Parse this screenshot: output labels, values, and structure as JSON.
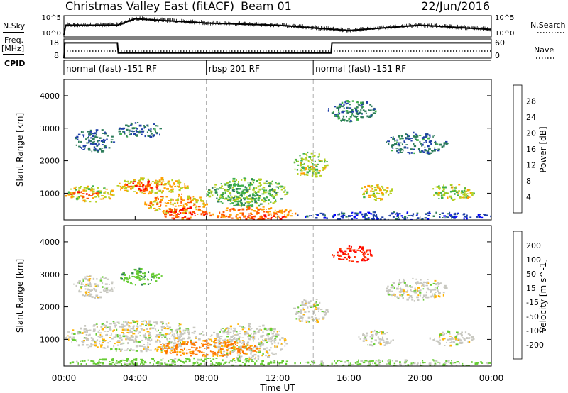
{
  "header": {
    "station": "Christmas Valley East (fitACF)",
    "beam": "Beam 01",
    "date": "22/Jun/2016"
  },
  "left_labels": {
    "nsky": "N.Sky",
    "freq_line1": "Freq.",
    "freq_line2": "[MHz]",
    "cpid": "CPID"
  },
  "right_labels": {
    "nsearch": "N.Search",
    "nave": "Nave"
  },
  "noise_axis": {
    "top": "10^5",
    "bottom": "10^0"
  },
  "freq_axis": {
    "left_ticks": [
      "18",
      "8"
    ],
    "right_ticks": [
      "60",
      "0"
    ]
  },
  "cpid_segments": [
    {
      "label": "normal (fast) -151 RF",
      "start_hour": 0,
      "end_hour": 8
    },
    {
      "label": "rbsp 201 RF",
      "start_hour": 8,
      "end_hour": 14
    },
    {
      "label": "normal (fast) -151 RF",
      "start_hour": 14,
      "end_hour": 24
    }
  ],
  "x_axis": {
    "label": "Time UT",
    "ticks": [
      "00:00",
      "04:00",
      "08:00",
      "12:00",
      "16:00",
      "20:00",
      "00:00"
    ]
  },
  "power_panel": {
    "ylabel": "Slant Range [km]",
    "yticks": [
      "1000",
      "2000",
      "3000",
      "4000"
    ],
    "colorbar_label": "Power [dB]",
    "colorbar_ticks": [
      "4",
      "8",
      "12",
      "16",
      "20",
      "24",
      "28"
    ],
    "colors": [
      "#0000ff",
      "#1e3fa8",
      "#2e7d5b",
      "#3fb04a",
      "#b5d020",
      "#ff9f00",
      "#ff5500",
      "#ff0000"
    ]
  },
  "velocity_panel": {
    "ylabel": "Slant Range [km]",
    "yticks": [
      "1000",
      "2000",
      "3000",
      "4000"
    ],
    "colorbar_label": "Velocity [m s^-1]",
    "colorbar_ticks": [
      "200",
      "100",
      "50",
      "15",
      "-15",
      "-50",
      "-100",
      "-200"
    ],
    "colors": [
      "#0000c0",
      "#1e3fa8",
      "#2e7d5b",
      "#66cc33",
      "#c8c8c0",
      "#ffb300",
      "#ff7700",
      "#ff3300",
      "#ff0000"
    ]
  },
  "chart_data": [
    {
      "type": "line",
      "name": "noise",
      "x_range": [
        0,
        24
      ],
      "ylim": [
        "10^0",
        "10^5"
      ],
      "series": [
        {
          "name": "N.Sky",
          "x": [
            0,
            0.1,
            3,
            4,
            8,
            12,
            16,
            20,
            24
          ],
          "y_frac": [
            0.1,
            0.55,
            0.55,
            0.85,
            0.65,
            0.55,
            0.3,
            0.55,
            0.35
          ]
        }
      ]
    },
    {
      "type": "line",
      "name": "frequency",
      "x_range": [
        0,
        24
      ],
      "ylim_left": [
        8,
        18
      ],
      "ylim_right": [
        0,
        60
      ],
      "series": [
        {
          "name": "Freq.",
          "x": [
            0,
            0.05,
            3,
            3.05,
            15,
            15.05,
            24
          ],
          "y": [
            8,
            17,
            17,
            11,
            11,
            17,
            17
          ]
        },
        {
          "name": "Nave",
          "x": [
            0,
            24
          ],
          "y": [
            25,
            25
          ]
        }
      ]
    },
    {
      "type": "heatmap",
      "name": "power",
      "x_range": [
        0,
        24
      ],
      "ylim": [
        180,
        4500
      ],
      "zlim": [
        0,
        30
      ],
      "x_label": "Time UT",
      "y_label": "Slant Range [km]",
      "z_label": "Power [dB]",
      "regions": [
        {
          "x": [
            0.0,
            2.8
          ],
          "y": [
            750,
            1250
          ],
          "z": 18
        },
        {
          "x": [
            0.3,
            2.0
          ],
          "y": [
            850,
            1100
          ],
          "z": 26
        },
        {
          "x": [
            2.9,
            7.0
          ],
          "y": [
            1000,
            1500
          ],
          "z": 20
        },
        {
          "x": [
            3.3,
            5.5
          ],
          "y": [
            1100,
            1400
          ],
          "z": 28
        },
        {
          "x": [
            4.5,
            8.0
          ],
          "y": [
            400,
            1000
          ],
          "z": 22
        },
        {
          "x": [
            5.5,
            8.0
          ],
          "y": [
            200,
            600
          ],
          "z": 27
        },
        {
          "x": [
            8.0,
            12.5
          ],
          "y": [
            600,
            1500
          ],
          "z": 15
        },
        {
          "x": [
            9.0,
            11.0
          ],
          "y": [
            700,
            1200
          ],
          "z": 14
        },
        {
          "x": [
            8.0,
            13.0
          ],
          "y": [
            200,
            600
          ],
          "z": 24
        },
        {
          "x": [
            10.0,
            12.5
          ],
          "y": [
            200,
            350
          ],
          "z": 30
        },
        {
          "x": [
            12.8,
            14.8
          ],
          "y": [
            1500,
            2300
          ],
          "z": 17
        },
        {
          "x": [
            13.5,
            14.5
          ],
          "y": [
            1700,
            1900
          ],
          "z": 20
        },
        {
          "x": [
            16.5,
            18.5
          ],
          "y": [
            800,
            1300
          ],
          "z": 19
        },
        {
          "x": [
            20.5,
            23.0
          ],
          "y": [
            800,
            1300
          ],
          "z": 17
        },
        {
          "x": [
            0.5,
            2.8
          ],
          "y": [
            2300,
            3000
          ],
          "z": 8
        },
        {
          "x": [
            18.0,
            21.5
          ],
          "y": [
            2200,
            2900
          ],
          "z": 9
        },
        {
          "x": [
            14.8,
            17.5
          ],
          "y": [
            3200,
            3900
          ],
          "z": 10
        },
        {
          "x": [
            13.0,
            24.0
          ],
          "y": [
            200,
            450
          ],
          "z": 6
        },
        {
          "x": [
            3.0,
            5.5
          ],
          "y": [
            2700,
            3200
          ],
          "z": 9
        }
      ]
    },
    {
      "type": "heatmap",
      "name": "velocity",
      "x_range": [
        0,
        24
      ],
      "ylim": [
        180,
        4500
      ],
      "zlim": [
        -200,
        200
      ],
      "x_label": "Time UT",
      "y_label": "Slant Range [km]",
      "z_label": "Velocity [m s^-1]",
      "regions": [
        {
          "x": [
            0.0,
            8.0
          ],
          "y": [
            650,
            1600
          ],
          "z": 0
        },
        {
          "x": [
            8.0,
            12.5
          ],
          "y": [
            400,
            1500
          ],
          "z": 0
        },
        {
          "x": [
            5.0,
            11.0
          ],
          "y": [
            500,
            1000
          ],
          "z": -60
        },
        {
          "x": [
            0.0,
            13.0
          ],
          "y": [
            180,
            450
          ],
          "z": 30
        },
        {
          "x": [
            13.0,
            24.0
          ],
          "y": [
            180,
            400
          ],
          "z": 20
        },
        {
          "x": [
            12.8,
            14.8
          ],
          "y": [
            1500,
            2300
          ],
          "z": 0
        },
        {
          "x": [
            16.5,
            18.5
          ],
          "y": [
            800,
            1300
          ],
          "z": 0
        },
        {
          "x": [
            20.5,
            23.0
          ],
          "y": [
            800,
            1300
          ],
          "z": 0
        },
        {
          "x": [
            0.5,
            2.8
          ],
          "y": [
            2300,
            3000
          ],
          "z": 0
        },
        {
          "x": [
            18.0,
            21.5
          ],
          "y": [
            2200,
            2900
          ],
          "z": 0
        },
        {
          "x": [
            15.0,
            17.5
          ],
          "y": [
            3400,
            3900
          ],
          "z": -200
        },
        {
          "x": [
            3.0,
            5.5
          ],
          "y": [
            2700,
            3200
          ],
          "z": 40
        }
      ]
    }
  ]
}
